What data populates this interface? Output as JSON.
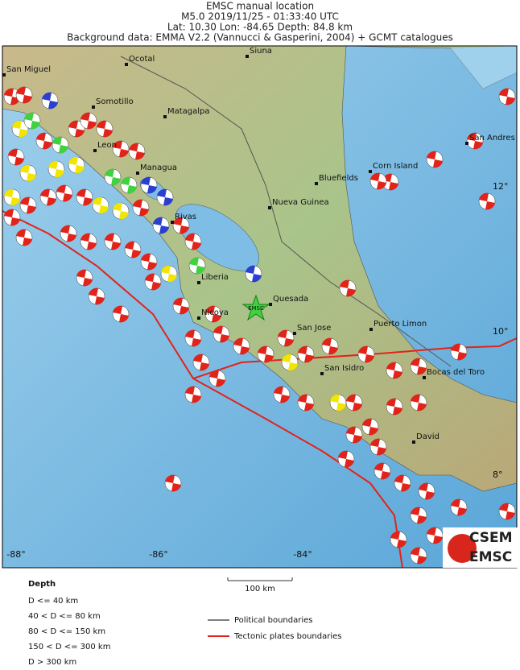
{
  "header": {
    "title": "EMSC manual location",
    "line2": "M5.0  2019/11/25 - 01:33:40 UTC",
    "line3": "Lat: 10.30    Lon: -84.65      Depth:  84.8 km",
    "line4": "Background data: EMMA V2.2 (Vannucci & Gasperini, 2004) + GCMT catalogues"
  },
  "map": {
    "places": [
      "San Miguel",
      "Ocotal",
      "Siuna",
      "Somotillo",
      "Matagalpa",
      "Leon",
      "Managua",
      "San Andres",
      "Corn Island",
      "Bluefields",
      "Nueva Guinea",
      "Rivas",
      "Liberia",
      "Quesada",
      "Nicoya",
      "San Jose",
      "Puerto Limon",
      "San Isidro",
      "Bocas del Toro",
      "David"
    ],
    "lon_labels": [
      "-88°",
      "-86°",
      "-84°"
    ],
    "lat_labels": [
      "12°",
      "10°",
      "8°"
    ],
    "epicenter_label": "EMSC"
  },
  "logo": {
    "top": "CSEM",
    "bottom": "EMSC"
  },
  "legend": {
    "depth_title": "Depth",
    "depth_classes": [
      "D <= 40 km",
      "40 < D <= 80 km",
      "80 < D <= 150 km",
      "150 < D <= 300 km",
      "D > 300 km"
    ],
    "scale": "100 km",
    "lines": [
      "Political boundaries",
      "Tectonic plates boundaries"
    ]
  }
}
